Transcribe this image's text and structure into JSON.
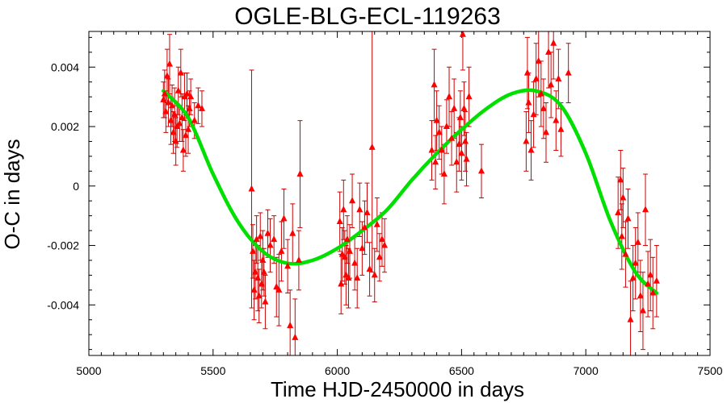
{
  "chart_data": {
    "type": "scatter",
    "title": "OGLE-BLG-ECL-119263",
    "xlabel": "Time HJD-2450000 in days",
    "ylabel": "O-C in days",
    "xlim": [
      5000,
      7500
    ],
    "ylim": [
      -0.0057,
      0.0052
    ],
    "grid": false,
    "legend": "none",
    "x_ticks": [
      5000,
      5500,
      6000,
      6500,
      7000,
      7500
    ],
    "x_tick_labels": [
      "5000",
      "5500",
      "6000",
      "6500",
      "7000",
      "7500"
    ],
    "y_ticks": [
      -0.004,
      -0.002,
      0,
      0.002,
      0.004
    ],
    "y_tick_labels": [
      "-0.004",
      "-0.002",
      "0",
      "0.002",
      "0.004"
    ],
    "colors": {
      "points": "#ff0000",
      "errorbars": "#cc0000",
      "fit": "#00e000"
    },
    "series": [
      {
        "kind": "errorbar-points",
        "marker": "triangle",
        "points": [
          {
            "x": 5300,
            "y": 0.0029,
            "err": 0.0006
          },
          {
            "x": 5305,
            "y": 0.0031,
            "err": 0.0008
          },
          {
            "x": 5310,
            "y": 0.0025,
            "err": 0.0007
          },
          {
            "x": 5315,
            "y": 0.0037,
            "err": 0.0009
          },
          {
            "x": 5320,
            "y": 0.0028,
            "err": 0.0008
          },
          {
            "x": 5325,
            "y": 0.0041,
            "err": 0.001
          },
          {
            "x": 5330,
            "y": 0.0022,
            "err": 0.0008
          },
          {
            "x": 5335,
            "y": 0.0027,
            "err": 0.0007
          },
          {
            "x": 5340,
            "y": 0.0018,
            "err": 0.0007
          },
          {
            "x": 5345,
            "y": 0.0024,
            "err": 0.0009
          },
          {
            "x": 5350,
            "y": 0.0015,
            "err": 0.0008
          },
          {
            "x": 5355,
            "y": 0.002,
            "err": 0.0007
          },
          {
            "x": 5360,
            "y": 0.0032,
            "err": 0.0008
          },
          {
            "x": 5365,
            "y": 0.0021,
            "err": 0.0006
          },
          {
            "x": 5370,
            "y": 0.0038,
            "err": 0.0008
          },
          {
            "x": 5375,
            "y": 0.0023,
            "err": 0.0008
          },
          {
            "x": 5380,
            "y": 0.0012,
            "err": 0.0007
          },
          {
            "x": 5385,
            "y": 0.003,
            "err": 0.0008
          },
          {
            "x": 5390,
            "y": 0.0017,
            "err": 0.0007
          },
          {
            "x": 5395,
            "y": 0.0031,
            "err": 0.0007
          },
          {
            "x": 5400,
            "y": 0.0019,
            "err": 0.0008
          },
          {
            "x": 5405,
            "y": 0.0026,
            "err": 0.0006
          },
          {
            "x": 5410,
            "y": 0.003,
            "err": 0.0006
          },
          {
            "x": 5425,
            "y": 0.0022,
            "err": 0.0006
          },
          {
            "x": 5440,
            "y": 0.0027,
            "err": 0.0006
          },
          {
            "x": 5455,
            "y": 0.0026,
            "err": 0.0006
          },
          {
            "x": 5655,
            "y": -0.0001,
            "err": 0.004
          },
          {
            "x": 5660,
            "y": -0.0022,
            "err": 0.0009
          },
          {
            "x": 5665,
            "y": -0.0035,
            "err": 0.001
          },
          {
            "x": 5670,
            "y": -0.0029,
            "err": 0.0009
          },
          {
            "x": 5675,
            "y": -0.0018,
            "err": 0.0008
          },
          {
            "x": 5680,
            "y": -0.0031,
            "err": 0.0011
          },
          {
            "x": 5685,
            "y": -0.0037,
            "err": 0.0009
          },
          {
            "x": 5690,
            "y": -0.0017,
            "err": 0.0008
          },
          {
            "x": 5695,
            "y": -0.0033,
            "err": 0.0008
          },
          {
            "x": 5700,
            "y": -0.0025,
            "err": 0.001
          },
          {
            "x": 5705,
            "y": -0.0029,
            "err": 0.0008
          },
          {
            "x": 5710,
            "y": -0.0039,
            "err": 0.0009
          },
          {
            "x": 5720,
            "y": -0.0016,
            "err": 0.0008
          },
          {
            "x": 5730,
            "y": -0.002,
            "err": 0.0009
          },
          {
            "x": 5745,
            "y": -0.0018,
            "err": 0.0008
          },
          {
            "x": 5755,
            "y": -0.0034,
            "err": 0.001
          },
          {
            "x": 5765,
            "y": -0.0035,
            "err": 0.0012
          },
          {
            "x": 5775,
            "y": -0.0022,
            "err": 0.001
          },
          {
            "x": 5785,
            "y": -0.0011,
            "err": 0.001
          },
          {
            "x": 5800,
            "y": -0.0027,
            "err": 0.0009
          },
          {
            "x": 5810,
            "y": -0.0047,
            "err": 0.0012
          },
          {
            "x": 5820,
            "y": -0.0016,
            "err": 0.001
          },
          {
            "x": 5830,
            "y": -0.0051,
            "err": 0.0013
          },
          {
            "x": 5845,
            "y": -0.0025,
            "err": 0.001
          },
          {
            "x": 5850,
            "y": 0.0004,
            "err": 0.0018
          },
          {
            "x": 6010,
            "y": -0.0012,
            "err": 0.001
          },
          {
            "x": 6015,
            "y": -0.0033,
            "err": 0.001
          },
          {
            "x": 6020,
            "y": -0.0023,
            "err": 0.0009
          },
          {
            "x": 6025,
            "y": -0.0008,
            "err": 0.001
          },
          {
            "x": 6030,
            "y": -0.0024,
            "err": 0.0009
          },
          {
            "x": 6035,
            "y": -0.003,
            "err": 0.001
          },
          {
            "x": 6040,
            "y": -0.0018,
            "err": 0.0008
          },
          {
            "x": 6045,
            "y": -0.0031,
            "err": 0.001
          },
          {
            "x": 6050,
            "y": -0.0022,
            "err": 0.0009
          },
          {
            "x": 6060,
            "y": -0.0005,
            "err": 0.0009
          },
          {
            "x": 6070,
            "y": -0.0026,
            "err": 0.0009
          },
          {
            "x": 6080,
            "y": -0.0031,
            "err": 0.001
          },
          {
            "x": 6090,
            "y": -0.0008,
            "err": 0.0009
          },
          {
            "x": 6100,
            "y": -0.0021,
            "err": 0.0009
          },
          {
            "x": 6110,
            "y": -0.0014,
            "err": 0.0009
          },
          {
            "x": 6120,
            "y": -0.0009,
            "err": 0.001
          },
          {
            "x": 6130,
            "y": -0.0028,
            "err": 0.0009
          },
          {
            "x": 6140,
            "y": 0.0013,
            "err": 0.0042
          },
          {
            "x": 6150,
            "y": -0.003,
            "err": 0.0009
          },
          {
            "x": 6160,
            "y": -0.0013,
            "err": 0.0009
          },
          {
            "x": 6170,
            "y": -0.0024,
            "err": 0.0008
          },
          {
            "x": 6180,
            "y": -0.0018,
            "err": 0.0009
          },
          {
            "x": 6190,
            "y": -0.002,
            "err": 0.0009
          },
          {
            "x": 6380,
            "y": 0.0012,
            "err": 0.001
          },
          {
            "x": 6390,
            "y": 0.0034,
            "err": 0.0012
          },
          {
            "x": 6395,
            "y": 0.0008,
            "err": 0.0009
          },
          {
            "x": 6400,
            "y": 0.0022,
            "err": 0.001
          },
          {
            "x": 6410,
            "y": 0.0018,
            "err": 0.0009
          },
          {
            "x": 6420,
            "y": 0.0012,
            "err": 0.0008
          },
          {
            "x": 6430,
            "y": 0.0004,
            "err": 0.001
          },
          {
            "x": 6440,
            "y": 0.002,
            "err": 0.0009
          },
          {
            "x": 6450,
            "y": 0.003,
            "err": 0.001
          },
          {
            "x": 6460,
            "y": 0.0016,
            "err": 0.0009
          },
          {
            "x": 6470,
            "y": 0.0026,
            "err": 0.001
          },
          {
            "x": 6480,
            "y": 0.0008,
            "err": 0.001
          },
          {
            "x": 6490,
            "y": 0.0014,
            "err": 0.0009
          },
          {
            "x": 6495,
            "y": 0.0023,
            "err": 0.0009
          },
          {
            "x": 6500,
            "y": 0.0011,
            "err": 0.0009
          },
          {
            "x": 6505,
            "y": 0.0051,
            "err": 0.0012
          },
          {
            "x": 6510,
            "y": 0.0026,
            "err": 0.0009
          },
          {
            "x": 6515,
            "y": 0.0015,
            "err": 0.001
          },
          {
            "x": 6520,
            "y": 0.0009,
            "err": 0.0009
          },
          {
            "x": 6530,
            "y": 0.003,
            "err": 0.001
          },
          {
            "x": 6580,
            "y": 0.0005,
            "err": 0.0009
          },
          {
            "x": 6760,
            "y": 0.0015,
            "err": 0.001
          },
          {
            "x": 6765,
            "y": 0.0038,
            "err": 0.0012
          },
          {
            "x": 6770,
            "y": 0.0028,
            "err": 0.001
          },
          {
            "x": 6780,
            "y": 0.0012,
            "err": 0.001
          },
          {
            "x": 6790,
            "y": 0.0024,
            "err": 0.0011
          },
          {
            "x": 6800,
            "y": 0.0036,
            "err": 0.0012
          },
          {
            "x": 6810,
            "y": 0.0042,
            "err": 0.0012
          },
          {
            "x": 6820,
            "y": 0.0031,
            "err": 0.0011
          },
          {
            "x": 6830,
            "y": 0.0026,
            "err": 0.001
          },
          {
            "x": 6840,
            "y": 0.0018,
            "err": 0.001
          },
          {
            "x": 6850,
            "y": 0.0045,
            "err": 0.0012
          },
          {
            "x": 6860,
            "y": 0.0034,
            "err": 0.0011
          },
          {
            "x": 6870,
            "y": 0.0048,
            "err": 0.0012
          },
          {
            "x": 6880,
            "y": 0.0022,
            "err": 0.001
          },
          {
            "x": 6890,
            "y": 0.0036,
            "err": 0.001
          },
          {
            "x": 6900,
            "y": 0.0019,
            "err": 0.0009
          },
          {
            "x": 6930,
            "y": 0.0038,
            "err": 0.001
          },
          {
            "x": 7130,
            "y": -0.0009,
            "err": 0.0012
          },
          {
            "x": 7140,
            "y": 0.0002,
            "err": 0.001
          },
          {
            "x": 7145,
            "y": -0.0017,
            "err": 0.0011
          },
          {
            "x": 7150,
            "y": -0.0004,
            "err": 0.001
          },
          {
            "x": 7160,
            "y": -0.0023,
            "err": 0.0011
          },
          {
            "x": 7170,
            "y": -0.0011,
            "err": 0.001
          },
          {
            "x": 7180,
            "y": -0.0045,
            "err": 0.0013
          },
          {
            "x": 7190,
            "y": -0.0031,
            "err": 0.0011
          },
          {
            "x": 7200,
            "y": -0.0026,
            "err": 0.0012
          },
          {
            "x": 7210,
            "y": -0.0019,
            "err": 0.001
          },
          {
            "x": 7220,
            "y": -0.0037,
            "err": 0.0012
          },
          {
            "x": 7230,
            "y": -0.0042,
            "err": 0.0013
          },
          {
            "x": 7240,
            "y": -0.0008,
            "err": 0.0012
          },
          {
            "x": 7250,
            "y": -0.0033,
            "err": 0.0011
          },
          {
            "x": 7260,
            "y": -0.003,
            "err": 0.0012
          },
          {
            "x": 7270,
            "y": -0.0036,
            "err": 0.0012
          },
          {
            "x": 7285,
            "y": -0.0032,
            "err": 0.0012
          }
        ]
      },
      {
        "kind": "fit-curve",
        "x": [
          5300,
          5400,
          5500,
          5600,
          5700,
          5800,
          5900,
          6000,
          6100,
          6200,
          6300,
          6400,
          6500,
          6600,
          6700,
          6800,
          6900,
          7000,
          7100,
          7200,
          7285
        ],
        "y": [
          0.0032,
          0.0023,
          0.0004,
          -0.0012,
          -0.0022,
          -0.0026,
          -0.0025,
          -0.0021,
          -0.0015,
          -0.0008,
          0.0002,
          0.0011,
          0.0019,
          0.0026,
          0.0031,
          0.0032,
          0.0027,
          0.0011,
          -0.0012,
          -0.0029,
          -0.0036
        ]
      }
    ]
  }
}
